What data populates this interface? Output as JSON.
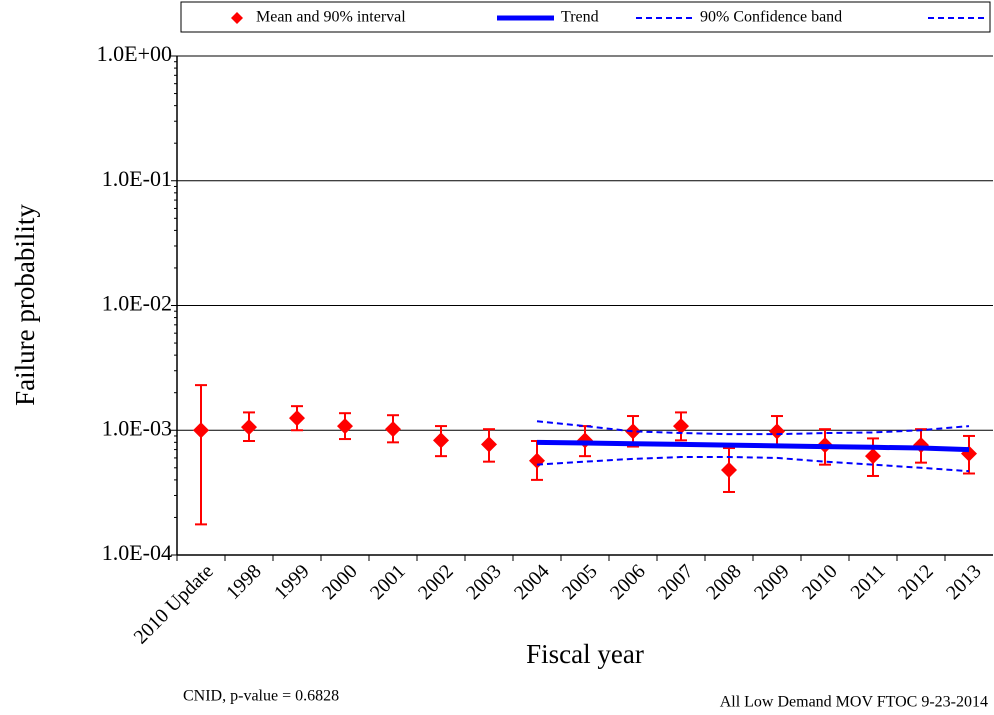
{
  "chart_data": {
    "type": "line",
    "x_label": "Fiscal year",
    "y_label": "Failure probability",
    "log_scale": true,
    "grid": true,
    "legend_position": "top",
    "categories": [
      "2010 Update",
      "1998",
      "1999",
      "2000",
      "2001",
      "2002",
      "2003",
      "2004",
      "2005",
      "2006",
      "2007",
      "2008",
      "2009",
      "2010",
      "2011",
      "2012",
      "2013"
    ],
    "ylim": [
      0.0001,
      1
    ],
    "yticks": [
      {
        "value": 1,
        "label": "1.0E+00"
      },
      {
        "value": 0.1,
        "label": "1.0E-01"
      },
      {
        "value": 0.01,
        "label": "1.0E-02"
      },
      {
        "value": 0.001,
        "label": "1.0E-03"
      },
      {
        "value": 0.0001,
        "label": "1.0E-04"
      }
    ],
    "series": [
      {
        "name": "Mean and 90% interval",
        "style": "errorbar",
        "color": "#ff0000",
        "values": [
          0.001,
          0.00106,
          0.00125,
          0.00108,
          0.00102,
          0.00083,
          0.00077,
          0.00057,
          0.00083,
          0.00098,
          0.00108,
          0.00048,
          0.00098,
          0.00076,
          0.00062,
          0.00076,
          0.00065
        ],
        "lower": [
          0.000176,
          0.00082,
          0.001,
          0.00085,
          0.0008,
          0.00062,
          0.00056,
          0.0004,
          0.00062,
          0.00074,
          0.00083,
          0.00032,
          0.00074,
          0.00053,
          0.00043,
          0.00055,
          0.00045
        ],
        "upper": [
          0.0023,
          0.00139,
          0.00156,
          0.00137,
          0.00132,
          0.00108,
          0.00102,
          0.00082,
          0.00108,
          0.0013,
          0.00139,
          0.00072,
          0.0013,
          0.00102,
          0.00086,
          0.00102,
          0.0009
        ]
      },
      {
        "name": "Trend",
        "style": "solid",
        "color": "#0000ff",
        "values": [
          null,
          null,
          null,
          null,
          null,
          null,
          null,
          0.0008,
          0.00079,
          0.00078,
          0.00077,
          0.00076,
          0.00075,
          0.00074,
          0.00073,
          0.00072,
          0.0007
        ]
      },
      {
        "name": "90% Confidence band",
        "style": "dashed",
        "color": "#0000ff",
        "values": [
          null,
          null,
          null,
          null,
          null,
          null,
          null,
          0.00118,
          0.00108,
          0.00098,
          0.00095,
          0.00093,
          0.00093,
          0.00095,
          0.00096,
          0.001,
          0.00108
        ]
      },
      {
        "style": "dashed",
        "color": "#0000ff",
        "values": [
          null,
          null,
          null,
          null,
          null,
          null,
          null,
          0.00053,
          0.00056,
          0.00059,
          0.00061,
          0.00061,
          0.0006,
          0.00056,
          0.00053,
          0.0005,
          0.00047
        ]
      }
    ],
    "annotations": [
      "CNID, p-value = 0.6828",
      "All Low Demand MOV FTOC 9-23-2014"
    ]
  }
}
